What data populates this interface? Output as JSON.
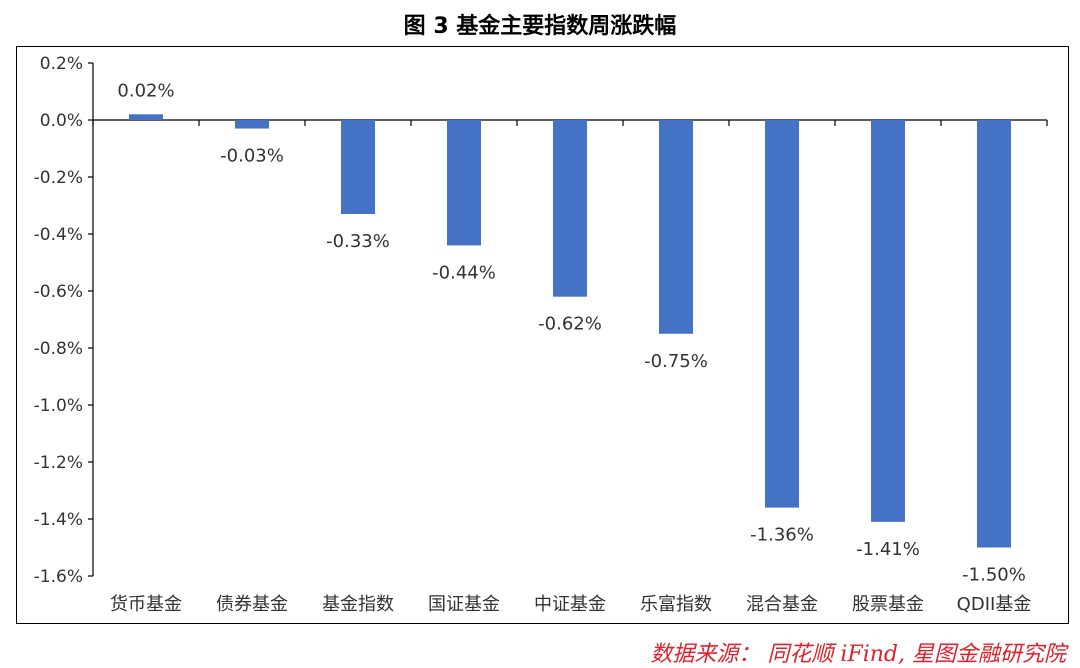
{
  "title": "图 3 基金主要指数周涨跌幅",
  "source": "数据来源： 同花顺 iFind, 星图金融研究院",
  "colors": {
    "bar": "#4472c4",
    "axis": "#000000",
    "text": "#333333",
    "source": "#e0202a"
  },
  "chart_data": {
    "type": "bar",
    "title": "图 3 基金主要指数周涨跌幅",
    "categories": [
      "货币基金",
      "债券基金",
      "基金指数",
      "国证基金",
      "中证基金",
      "乐富指数",
      "混合基金",
      "股票基金",
      "QDII基金"
    ],
    "values": [
      0.02,
      -0.03,
      -0.33,
      -0.44,
      -0.62,
      -0.75,
      -1.36,
      -1.41,
      -1.5
    ],
    "value_labels": [
      "0.02%",
      "-0.03%",
      "-0.33%",
      "-0.44%",
      "-0.62%",
      "-0.75%",
      "-1.36%",
      "-1.41%",
      "-1.50%"
    ],
    "yticks": [
      0.2,
      0.0,
      -0.2,
      -0.4,
      -0.6,
      -0.8,
      -1.0,
      -1.2,
      -1.4,
      -1.6
    ],
    "ytick_labels": [
      "0.2%",
      "0.0%",
      "-0.2%",
      "-0.4%",
      "-0.6%",
      "-0.8%",
      "-1.0%",
      "-1.2%",
      "-1.4%",
      "-1.6%"
    ],
    "ylim": [
      -1.6,
      0.2
    ],
    "xlabel": "",
    "ylabel": "",
    "grid": false,
    "legend": "none"
  }
}
